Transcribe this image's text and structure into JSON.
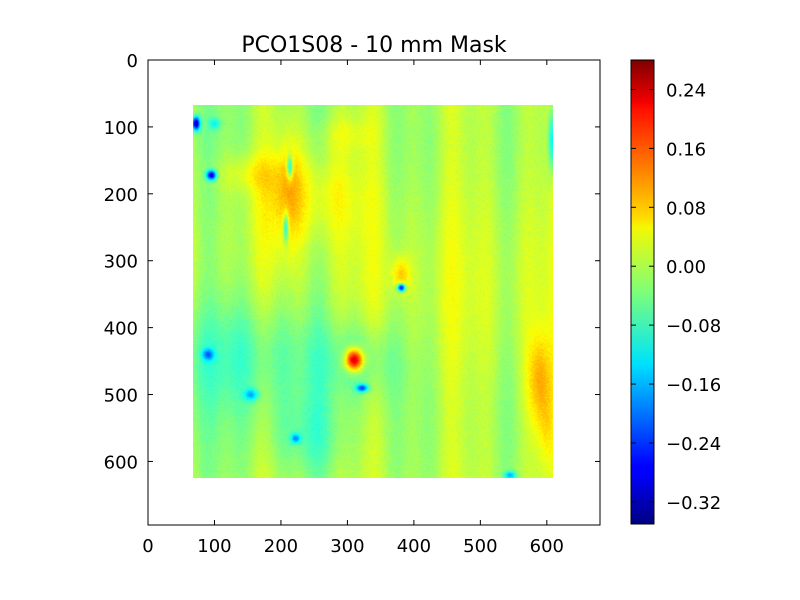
{
  "chart_data": {
    "type": "heatmap",
    "title": "PCO1S08 - 10 mm Mask",
    "xlabel": "",
    "ylabel": "",
    "x_range": [
      0,
      680
    ],
    "y_range": [
      0,
      695
    ],
    "y_inverted": true,
    "x_ticks": [
      0,
      100,
      200,
      300,
      400,
      500,
      600
    ],
    "y_ticks": [
      0,
      100,
      200,
      300,
      400,
      500,
      600
    ],
    "data_extent": {
      "x": [
        68,
        610
      ],
      "y": [
        68,
        625
      ]
    },
    "colormap": "jet",
    "color_range": [
      -0.35,
      0.28
    ],
    "colorbar_ticks": [
      "0.24",
      "0.16",
      "0.08",
      "0.00",
      "−0.08",
      "−0.16",
      "−0.24",
      "−0.32"
    ],
    "colorbar_tick_values": [
      0.24,
      0.16,
      0.08,
      0.0,
      -0.08,
      -0.16,
      -0.24,
      -0.32
    ],
    "background_value": 0.0,
    "features": [
      {
        "x": 240,
        "y": 200,
        "sx": 55,
        "sy": 50,
        "value": 0.06
      },
      {
        "x": 210,
        "y": 195,
        "sx": 14,
        "sy": 60,
        "value": 0.05
      },
      {
        "x": 150,
        "y": 170,
        "sx": 35,
        "sy": 20,
        "value": 0.04
      },
      {
        "x": 300,
        "y": 110,
        "sx": 30,
        "sy": 20,
        "value": 0.03
      },
      {
        "x": 150,
        "y": 440,
        "sx": 90,
        "sy": 60,
        "value": -0.06
      },
      {
        "x": 320,
        "y": 450,
        "sx": 40,
        "sy": 40,
        "value": -0.05
      },
      {
        "x": 240,
        "y": 560,
        "sx": 40,
        "sy": 40,
        "value": -0.04
      },
      {
        "x": 590,
        "y": 480,
        "sx": 14,
        "sy": 50,
        "value": 0.09
      },
      {
        "x": 600,
        "y": 560,
        "sx": 10,
        "sy": 40,
        "value": 0.04
      },
      {
        "x": 380,
        "y": 320,
        "sx": 10,
        "sy": 18,
        "value": 0.08
      },
      {
        "x": 310,
        "y": 448,
        "sx": 9,
        "sy": 11,
        "value": 0.28
      },
      {
        "x": 381,
        "y": 340,
        "sx": 4,
        "sy": 4,
        "value": -0.3
      },
      {
        "x": 72,
        "y": 95,
        "sx": 4,
        "sy": 7,
        "value": -0.32
      },
      {
        "x": 95,
        "y": 172,
        "sx": 5,
        "sy": 5,
        "value": -0.28
      },
      {
        "x": 213,
        "y": 160,
        "sx": 3,
        "sy": 12,
        "value": -0.16
      },
      {
        "x": 207,
        "y": 250,
        "sx": 3,
        "sy": 15,
        "value": -0.14
      },
      {
        "x": 322,
        "y": 490,
        "sx": 6,
        "sy": 4,
        "value": -0.2
      },
      {
        "x": 90,
        "y": 440,
        "sx": 6,
        "sy": 6,
        "value": -0.14
      },
      {
        "x": 155,
        "y": 500,
        "sx": 7,
        "sy": 6,
        "value": -0.12
      },
      {
        "x": 222,
        "y": 565,
        "sx": 5,
        "sy": 5,
        "value": -0.14
      },
      {
        "x": 545,
        "y": 620,
        "sx": 6,
        "sy": 4,
        "value": -0.14
      },
      {
        "x": 608,
        "y": 120,
        "sx": 4,
        "sy": 30,
        "value": -0.12
      },
      {
        "x": 100,
        "y": 95,
        "sx": 6,
        "sy": 6,
        "value": -0.08
      }
    ]
  }
}
